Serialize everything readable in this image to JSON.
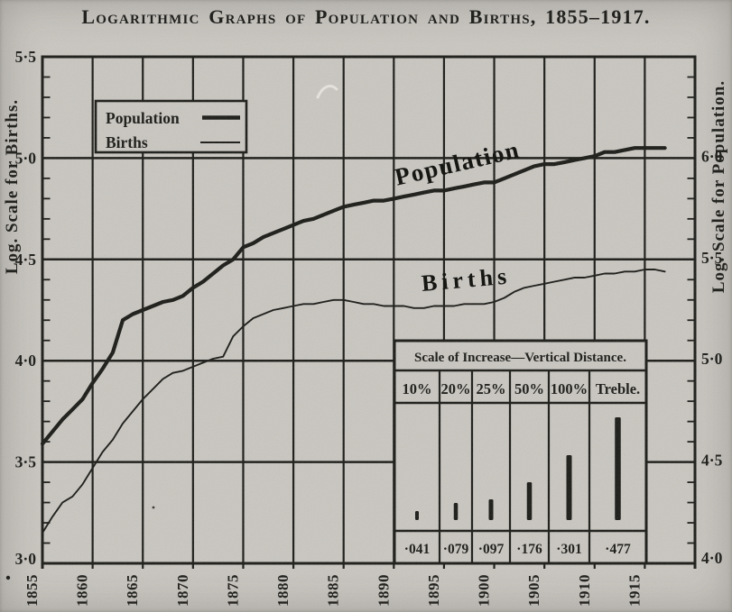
{
  "title": "Logarithmic Graphs of Population and Births, 1855–1917.",
  "colors": {
    "paper": "#c9c6c0",
    "ink": "#1b1b17"
  },
  "legend": {
    "items": [
      {
        "label": "Population",
        "weight": "thick"
      },
      {
        "label": "Births",
        "weight": "thin"
      }
    ]
  },
  "curve_labels": {
    "population": "Population",
    "births": "Births"
  },
  "axes": {
    "left_label": "Log. Scale for Births.",
    "right_label": "Log. Scale for Population.",
    "left_ticks": [
      "5·5",
      "5·0",
      "4·5",
      "4·0",
      "3·5",
      "3·0"
    ],
    "right_ticks": [
      "6·0",
      "5·5",
      "5·0",
      "4·5",
      "4·0"
    ],
    "x_ticks": [
      "1855",
      "1860",
      "1865",
      "1870",
      "1875",
      "1880",
      "1885",
      "1890",
      "1895",
      "1900",
      "1905",
      "1910",
      "1915"
    ]
  },
  "chart_data": {
    "type": "line",
    "x_range": [
      1855,
      1920
    ],
    "grid": "both",
    "left_axis": {
      "label": "Log. Scale for Births.",
      "range": [
        3.0,
        5.5
      ]
    },
    "right_axis": {
      "label": "Log. Scale for Population.",
      "range": [
        4.0,
        6.5
      ]
    },
    "series": [
      {
        "name": "Population",
        "axis": "right",
        "weight": "thick",
        "start_year": 1855,
        "values": [
          4.59,
          4.65,
          4.71,
          4.76,
          4.81,
          4.89,
          4.96,
          5.04,
          5.2,
          5.23,
          5.25,
          5.27,
          5.29,
          5.3,
          5.32,
          5.36,
          5.39,
          5.43,
          5.47,
          5.5,
          5.56,
          5.58,
          5.61,
          5.63,
          5.65,
          5.67,
          5.69,
          5.7,
          5.72,
          5.74,
          5.76,
          5.77,
          5.78,
          5.79,
          5.79,
          5.8,
          5.81,
          5.82,
          5.83,
          5.84,
          5.84,
          5.85,
          5.86,
          5.87,
          5.88,
          5.88,
          5.9,
          5.92,
          5.94,
          5.96,
          5.97,
          5.97,
          5.98,
          5.99,
          6.0,
          6.01,
          6.03,
          6.03,
          6.04,
          6.05,
          6.05,
          6.05,
          6.05
        ]
      },
      {
        "name": "Births",
        "axis": "left",
        "weight": "thin",
        "start_year": 1855,
        "values": [
          3.15,
          3.23,
          3.3,
          3.33,
          3.39,
          3.47,
          3.55,
          3.61,
          3.69,
          3.75,
          3.81,
          3.86,
          3.91,
          3.94,
          3.95,
          3.97,
          3.99,
          4.01,
          4.02,
          4.12,
          4.17,
          4.21,
          4.23,
          4.25,
          4.26,
          4.27,
          4.28,
          4.28,
          4.29,
          4.3,
          4.3,
          4.29,
          4.28,
          4.28,
          4.27,
          4.27,
          4.27,
          4.26,
          4.26,
          4.27,
          4.27,
          4.27,
          4.28,
          4.28,
          4.28,
          4.29,
          4.31,
          4.34,
          4.36,
          4.37,
          4.38,
          4.39,
          4.4,
          4.41,
          4.41,
          4.42,
          4.43,
          4.43,
          4.44,
          4.44,
          4.45,
          4.45,
          4.44
        ]
      }
    ],
    "inset_table": {
      "title": "Scale of Increase—Vertical Distance.",
      "columns": [
        "10%",
        "20%",
        "25%",
        "50%",
        "100%",
        "Treble."
      ],
      "values": [
        "·041",
        "·079",
        "·097",
        "·176",
        "·301",
        "·477"
      ],
      "bar_log_values": [
        0.041,
        0.079,
        0.097,
        0.176,
        0.301,
        0.477
      ]
    }
  }
}
